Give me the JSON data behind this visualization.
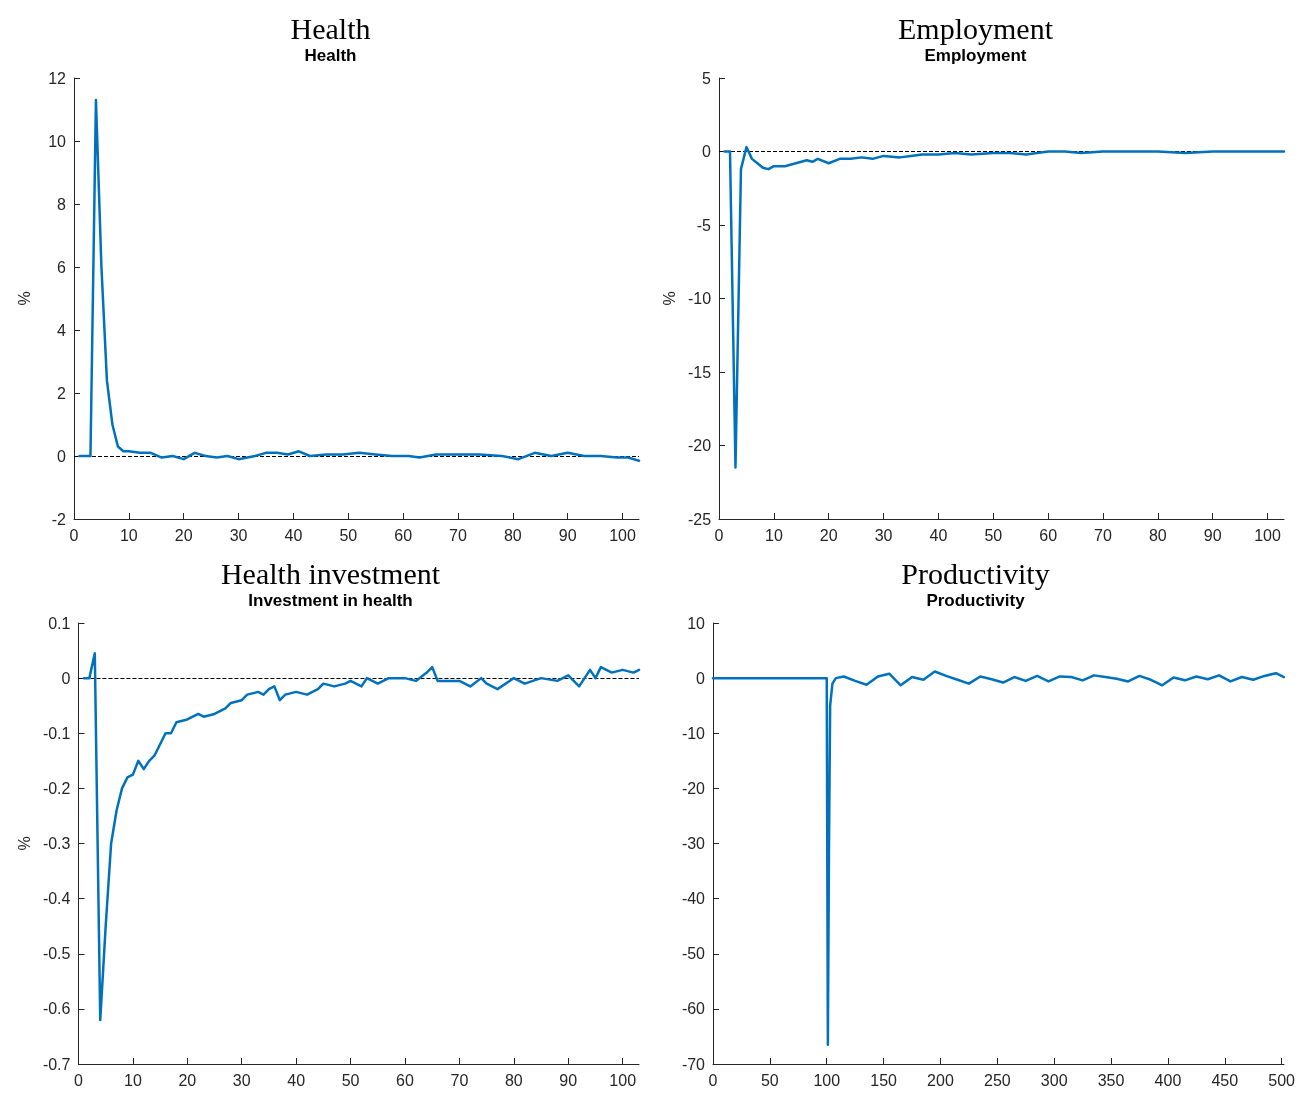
{
  "chart_data": [
    {
      "type": "line",
      "title": "Health",
      "subtitle": "Health",
      "ylabel": "%",
      "xlim": [
        0,
        103
      ],
      "xticks": [
        0,
        10,
        20,
        30,
        40,
        50,
        60,
        70,
        80,
        90,
        100
      ],
      "ylim": [
        -2,
        12
      ],
      "yticks": [
        -2,
        0,
        2,
        4,
        6,
        8,
        10,
        12
      ],
      "marker": "none",
      "line_style": "solid",
      "ref_lines": [
        {
          "axis": "y",
          "value": 0,
          "color": "#000000",
          "line_style": "dashed"
        }
      ],
      "series": [
        {
          "color": "#0072bd",
          "x": [
            1,
            2,
            3,
            4,
            5,
            6,
            7,
            8,
            9,
            10,
            12,
            14,
            16,
            18,
            20,
            22,
            24,
            26,
            28,
            30,
            33,
            35,
            37,
            39,
            41,
            43,
            46,
            49,
            52,
            55,
            58,
            61,
            63,
            66,
            70,
            74,
            78,
            81,
            84,
            87,
            90,
            93,
            96,
            99,
            101,
            103
          ],
          "values": [
            0,
            0,
            0,
            11.3,
            6,
            2.4,
            1,
            0.3,
            0.15,
            0.15,
            0.1,
            0.1,
            -0.05,
            0,
            -0.1,
            0.1,
            0,
            -0.05,
            0,
            -0.1,
            0,
            0.1,
            0.1,
            0.05,
            0.15,
            0,
            0.05,
            0.05,
            0.1,
            0.05,
            0,
            0,
            -0.05,
            0.05,
            0.05,
            0.05,
            0,
            -0.1,
            0.1,
            0,
            0.1,
            0,
            0,
            -0.05,
            -0.05,
            -0.15
          ]
        }
      ]
    },
    {
      "type": "line",
      "title": "Employment",
      "subtitle": "Employment",
      "ylabel": "%",
      "xlim": [
        0,
        103
      ],
      "xticks": [
        0,
        10,
        20,
        30,
        40,
        50,
        60,
        70,
        80,
        90,
        100
      ],
      "ylim": [
        -25,
        5
      ],
      "yticks": [
        -25,
        -20,
        -15,
        -10,
        -5,
        0,
        5
      ],
      "marker": "none",
      "line_style": "solid",
      "ref_lines": [
        {
          "axis": "y",
          "value": 0,
          "color": "#000000",
          "line_style": "dashed"
        }
      ],
      "series": [
        {
          "color": "#0072bd",
          "x": [
            1,
            2,
            3,
            4,
            5,
            6,
            7,
            8,
            9,
            10,
            12,
            14,
            16,
            17,
            18,
            20,
            22,
            24,
            26,
            28,
            30,
            33,
            35,
            37,
            40,
            43,
            46,
            50,
            53,
            56,
            60,
            63,
            66,
            70,
            75,
            80,
            85,
            90,
            95,
            100,
            103
          ],
          "values": [
            0,
            0,
            -21.5,
            -1.2,
            0.3,
            -0.5,
            -0.8,
            -1.1,
            -1.2,
            -1,
            -1,
            -0.8,
            -0.6,
            -0.7,
            -0.5,
            -0.8,
            -0.5,
            -0.5,
            -0.4,
            -0.5,
            -0.3,
            -0.4,
            -0.3,
            -0.2,
            -0.2,
            -0.1,
            -0.2,
            -0.1,
            -0.1,
            -0.2,
            0,
            0,
            -0.1,
            0,
            0,
            0,
            -0.1,
            0,
            0,
            0,
            0
          ]
        }
      ]
    },
    {
      "type": "line",
      "title": "Health investment",
      "subtitle": "Investment in health",
      "ylabel": "%",
      "xlim": [
        0,
        103
      ],
      "xticks": [
        0,
        10,
        20,
        30,
        40,
        50,
        60,
        70,
        80,
        90,
        100
      ],
      "ylim": [
        -0.7,
        0.1
      ],
      "yticks": [
        -0.7,
        -0.6,
        -0.5,
        -0.4,
        -0.3,
        -0.2,
        -0.1,
        0,
        0.1
      ],
      "marker": "none",
      "line_style": "solid",
      "ref_lines": [
        {
          "axis": "y",
          "value": 0,
          "color": "#000000",
          "line_style": "dashed"
        }
      ],
      "series": [
        {
          "color": "#0072bd",
          "x": [
            1,
            2,
            3,
            4,
            5,
            6,
            7,
            8,
            9,
            10,
            11,
            12,
            13,
            14,
            15,
            16,
            17,
            18,
            20,
            22,
            23,
            25,
            27,
            28,
            30,
            31,
            33,
            34,
            35,
            36,
            37,
            38,
            40,
            42,
            44,
            45,
            47,
            49,
            50,
            52,
            53,
            55,
            57,
            60,
            62,
            64,
            65,
            66,
            68,
            70,
            72,
            74,
            75,
            77,
            80,
            82,
            85,
            88,
            90,
            92,
            94,
            95,
            96,
            98,
            100,
            102,
            103
          ],
          "values": [
            0,
            0,
            0.045,
            -0.62,
            -0.45,
            -0.3,
            -0.24,
            -0.2,
            -0.18,
            -0.175,
            -0.15,
            -0.165,
            -0.15,
            -0.14,
            -0.12,
            -0.1,
            -0.1,
            -0.08,
            -0.075,
            -0.065,
            -0.07,
            -0.065,
            -0.055,
            -0.045,
            -0.04,
            -0.03,
            -0.025,
            -0.03,
            -0.02,
            -0.015,
            -0.04,
            -0.03,
            -0.025,
            -0.03,
            -0.02,
            -0.01,
            -0.015,
            -0.01,
            -0.005,
            -0.015,
            0,
            -0.01,
            0,
            0,
            -0.005,
            0.01,
            0.02,
            -0.005,
            -0.005,
            -0.005,
            -0.015,
            0,
            -0.01,
            -0.02,
            0,
            -0.01,
            0,
            -0.005,
            0.005,
            -0.015,
            0.015,
            0,
            0.02,
            0.01,
            0.015,
            0.01,
            0.015
          ]
        }
      ]
    },
    {
      "type": "line",
      "title": "Productivity",
      "subtitle": "Productivity",
      "xlim": [
        0,
        502
      ],
      "xticks": [
        0,
        50,
        100,
        150,
        200,
        250,
        300,
        350,
        400,
        450,
        500
      ],
      "ylim": [
        -70,
        10
      ],
      "yticks": [
        -70,
        -60,
        -50,
        -40,
        -30,
        -20,
        -10,
        0,
        10
      ],
      "marker": "none",
      "line_style": "solid",
      "series": [
        {
          "color": "#0072bd",
          "x": [
            0,
            100,
            101,
            102,
            103,
            105,
            108,
            115,
            125,
            135,
            145,
            155,
            165,
            175,
            185,
            195,
            205,
            215,
            225,
            235,
            245,
            255,
            265,
            275,
            285,
            295,
            305,
            315,
            325,
            335,
            345,
            355,
            365,
            375,
            385,
            395,
            405,
            415,
            425,
            435,
            445,
            455,
            465,
            475,
            485,
            495,
            502
          ],
          "values": [
            0,
            0,
            -66.5,
            -30,
            -5,
            -1,
            0,
            0.3,
            -0.5,
            -1.2,
            0.3,
            0.8,
            -1.3,
            0.2,
            -0.3,
            1.2,
            0.4,
            -0.3,
            -1,
            0.3,
            -0.2,
            -0.8,
            0.2,
            -0.5,
            0.4,
            -0.6,
            0.3,
            0.2,
            -0.4,
            0.5,
            0.2,
            -0.1,
            -0.6,
            0.4,
            -0.3,
            -1.3,
            0.1,
            -0.4,
            0.3,
            -0.2,
            0.5,
            -0.6,
            0.2,
            -0.3,
            0.4,
            0.9,
            0.2
          ]
        }
      ]
    }
  ]
}
